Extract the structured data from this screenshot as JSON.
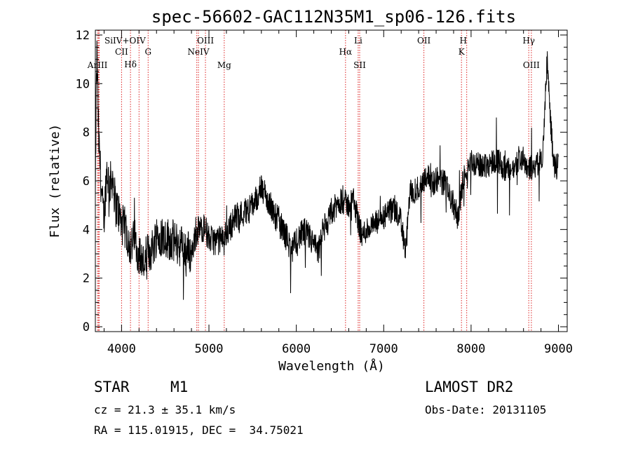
{
  "chart_data": {
    "type": "line",
    "title": "spec-56602-GAC112N35M1_sp06-126.fits",
    "xlabel": "Wavelength (Å)",
    "ylabel": "Flux (relative)",
    "xlim": [
      3700,
      9100
    ],
    "ylim": [
      -0.2,
      12.2
    ],
    "xticks": [
      4000,
      5000,
      6000,
      7000,
      8000,
      9000
    ],
    "xtick_labels": [
      "4000",
      "5000",
      "6000",
      "7000",
      "8000",
      "9000"
    ],
    "yticks": [
      0,
      2,
      4,
      6,
      8,
      10,
      12
    ],
    "ytick_labels": [
      "0",
      "2",
      "4",
      "6",
      "8",
      "10",
      "12"
    ],
    "grid": false,
    "series": [
      {
        "color": "#000000",
        "x": [
          3700,
          3710,
          3720,
          3730,
          3740,
          3750,
          3760,
          3780,
          3800,
          3830,
          3860,
          3900,
          3930,
          3960,
          4000,
          4050,
          4100,
          4150,
          4200,
          4250,
          4300,
          4350,
          4400,
          4500,
          4600,
          4700,
          4800,
          4850,
          4900,
          4950,
          5000,
          5100,
          5200,
          5300,
          5400,
          5500,
          5600,
          5700,
          5800,
          5900,
          5950,
          6000,
          6100,
          6200,
          6250,
          6300,
          6400,
          6500,
          6560,
          6600,
          6650,
          6700,
          6750,
          6800,
          6900,
          7000,
          7100,
          7200,
          7250,
          7300,
          7400,
          7450,
          7500,
          7550,
          7600,
          7700,
          7800,
          7850,
          7900,
          7950,
          8000,
          8100,
          8200,
          8300,
          8400,
          8500,
          8550,
          8600,
          8650,
          8700,
          8750,
          8800,
          8830,
          8850,
          8870,
          8900,
          8950,
          9000
        ],
        "y": [
          5.0,
          9.5,
          11.5,
          9.0,
          7.5,
          7.0,
          6.2,
          5.0,
          4.5,
          6.5,
          5.8,
          6.2,
          5.0,
          4.8,
          4.2,
          4.0,
          3.3,
          3.6,
          3.0,
          2.6,
          3.0,
          3.2,
          3.8,
          3.7,
          3.5,
          3.3,
          3.0,
          3.8,
          4.0,
          4.1,
          3.6,
          3.5,
          3.8,
          4.5,
          4.7,
          5.0,
          5.7,
          5.0,
          4.3,
          3.6,
          3.0,
          3.6,
          3.9,
          3.4,
          3.0,
          3.9,
          4.6,
          5.2,
          5.1,
          5.0,
          5.3,
          4.5,
          3.7,
          4.0,
          4.2,
          4.5,
          4.8,
          4.4,
          3.0,
          5.5,
          5.7,
          6.0,
          6.3,
          5.8,
          6.1,
          5.9,
          5.0,
          4.5,
          5.8,
          6.5,
          6.8,
          6.6,
          6.7,
          6.9,
          6.4,
          6.5,
          7.0,
          6.8,
          6.6,
          6.5,
          6.7,
          6.8,
          7.5,
          9.5,
          11.0,
          9.0,
          6.5,
          6.6
        ]
      }
    ],
    "line_markers": [
      {
        "label": "Li",
        "x": 6708,
        "row": 1
      },
      {
        "label": "OII",
        "x": 7460,
        "row": 1
      },
      {
        "label": "H",
        "x": 7910,
        "row": 1
      },
      {
        "label": "Hγ",
        "x": 8660,
        "row": 1
      },
      {
        "label": "SiIV+OIV",
        "x": 4040,
        "row": 1
      },
      {
        "label": "OIII",
        "x": 4960,
        "row": 1
      },
      {
        "label": "CII",
        "x": 4000,
        "row": 2
      },
      {
        "label": "G",
        "x": 4304,
        "row": 2
      },
      {
        "label": "NeIV",
        "x": 4880,
        "row": 2
      },
      {
        "label": "Hα",
        "x": 6563,
        "row": 2
      },
      {
        "label": "K",
        "x": 7890,
        "row": 2
      },
      {
        "label": "Hδ",
        "x": 4102,
        "row": 3
      },
      {
        "label": "Mg",
        "x": 5175,
        "row": 4
      },
      {
        "label": "SII",
        "x": 6725,
        "row": 4
      },
      {
        "label": "OIII",
        "x": 8690,
        "row": 4
      },
      {
        "label": "ArIII",
        "x": 3725,
        "row": 4
      }
    ],
    "line_positions": [
      3725,
      3735,
      3745,
      4000,
      4102,
      4200,
      4304,
      4861,
      4880,
      4960,
      5175,
      6563,
      6708,
      6725,
      7460,
      7890,
      7950,
      8660,
      8690
    ]
  },
  "info": {
    "object_class": "STAR",
    "subclass": "M1",
    "cz": "cz = 21.3 ± 35.1 km/s",
    "coords": "RA = 115.01915, DEC =  34.75021",
    "survey": "LAMOST DR2",
    "obs_date": "Obs-Date: 20131105"
  }
}
